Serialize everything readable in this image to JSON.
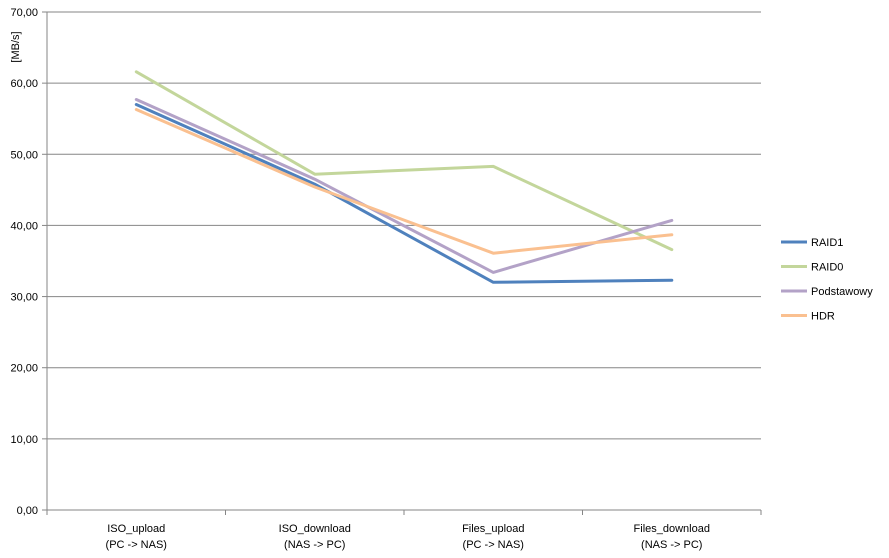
{
  "chart_data": {
    "type": "line",
    "title": "",
    "ylabel": "[MB/s]",
    "xlabel": "",
    "ylim": [
      0,
      70
    ],
    "y_ticks": [
      "0,00",
      "10,00",
      "20,00",
      "30,00",
      "40,00",
      "50,00",
      "60,00",
      "70,00"
    ],
    "categories": [
      [
        "ISO_upload",
        "(PC -> NAS)"
      ],
      [
        "ISO_download",
        "(NAS -> PC)"
      ],
      [
        "Files_upload",
        "(PC -> NAS)"
      ],
      [
        "Files_download",
        "(NAS -> PC)"
      ]
    ],
    "grid": true,
    "legend_position": "right",
    "series": [
      {
        "name": "RAID1",
        "color": "#4f81bd",
        "values": [
          57.0,
          45.8,
          32.0,
          32.3
        ]
      },
      {
        "name": "RAID0",
        "color": "#c3d69b",
        "values": [
          61.6,
          47.2,
          48.3,
          36.6
        ]
      },
      {
        "name": "Podstawowy",
        "color": "#b3a2c7",
        "values": [
          57.7,
          46.5,
          33.4,
          40.7
        ]
      },
      {
        "name": "HDR",
        "color": "#fac090",
        "values": [
          56.3,
          45.4,
          36.1,
          38.7
        ]
      }
    ]
  }
}
